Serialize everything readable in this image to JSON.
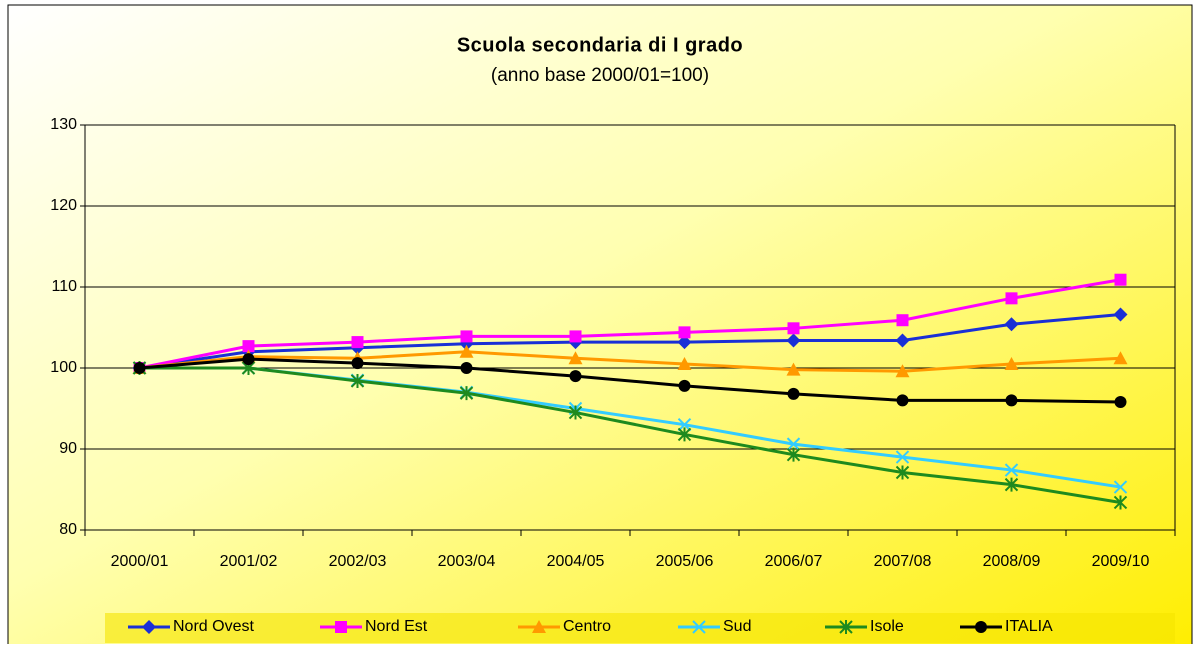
{
  "chart_data": {
    "type": "line",
    "title": "Scuola secondaria di I grado",
    "subtitle": "(anno base 2000/01=100)",
    "categories": [
      "2000/01",
      "2001/02",
      "2002/03",
      "2003/04",
      "2004/05",
      "2005/06",
      "2006/07",
      "2007/08",
      "2008/09",
      "2009/10"
    ],
    "series": [
      {
        "name": "Nord Ovest",
        "color": "#1a2fd6",
        "marker": "diamond",
        "values": [
          100,
          102,
          102.5,
          103,
          103.2,
          103.2,
          103.4,
          103.4,
          105.4,
          106.6
        ]
      },
      {
        "name": "Nord Est",
        "color": "#ff00ff",
        "marker": "square",
        "values": [
          100,
          102.7,
          103.2,
          103.9,
          103.9,
          104.4,
          104.9,
          105.9,
          108.6,
          110.9
        ]
      },
      {
        "name": "Centro",
        "color": "#ff9900",
        "marker": "triangle",
        "values": [
          100,
          101.4,
          101.2,
          102,
          101.2,
          100.5,
          99.8,
          99.6,
          100.5,
          101.2
        ]
      },
      {
        "name": "Sud",
        "color": "#33ccff",
        "marker": "x",
        "values": [
          100,
          100,
          98.5,
          97,
          95,
          93,
          90.6,
          89,
          87.4,
          85.3
        ]
      },
      {
        "name": "Isole",
        "color": "#1e8a1e",
        "marker": "star",
        "values": [
          100,
          100,
          98.4,
          96.9,
          94.5,
          91.8,
          89.3,
          87.1,
          85.6,
          83.4
        ]
      },
      {
        "name": "ITALIA",
        "color": "#000000",
        "marker": "circle",
        "values": [
          100,
          101.1,
          100.6,
          100,
          99,
          97.8,
          96.8,
          96,
          96,
          95.8
        ]
      }
    ],
    "ylim": [
      80,
      130
    ],
    "yticks": [
      80,
      90,
      100,
      110,
      120,
      130
    ],
    "grid": true,
    "legend": "bottom"
  }
}
